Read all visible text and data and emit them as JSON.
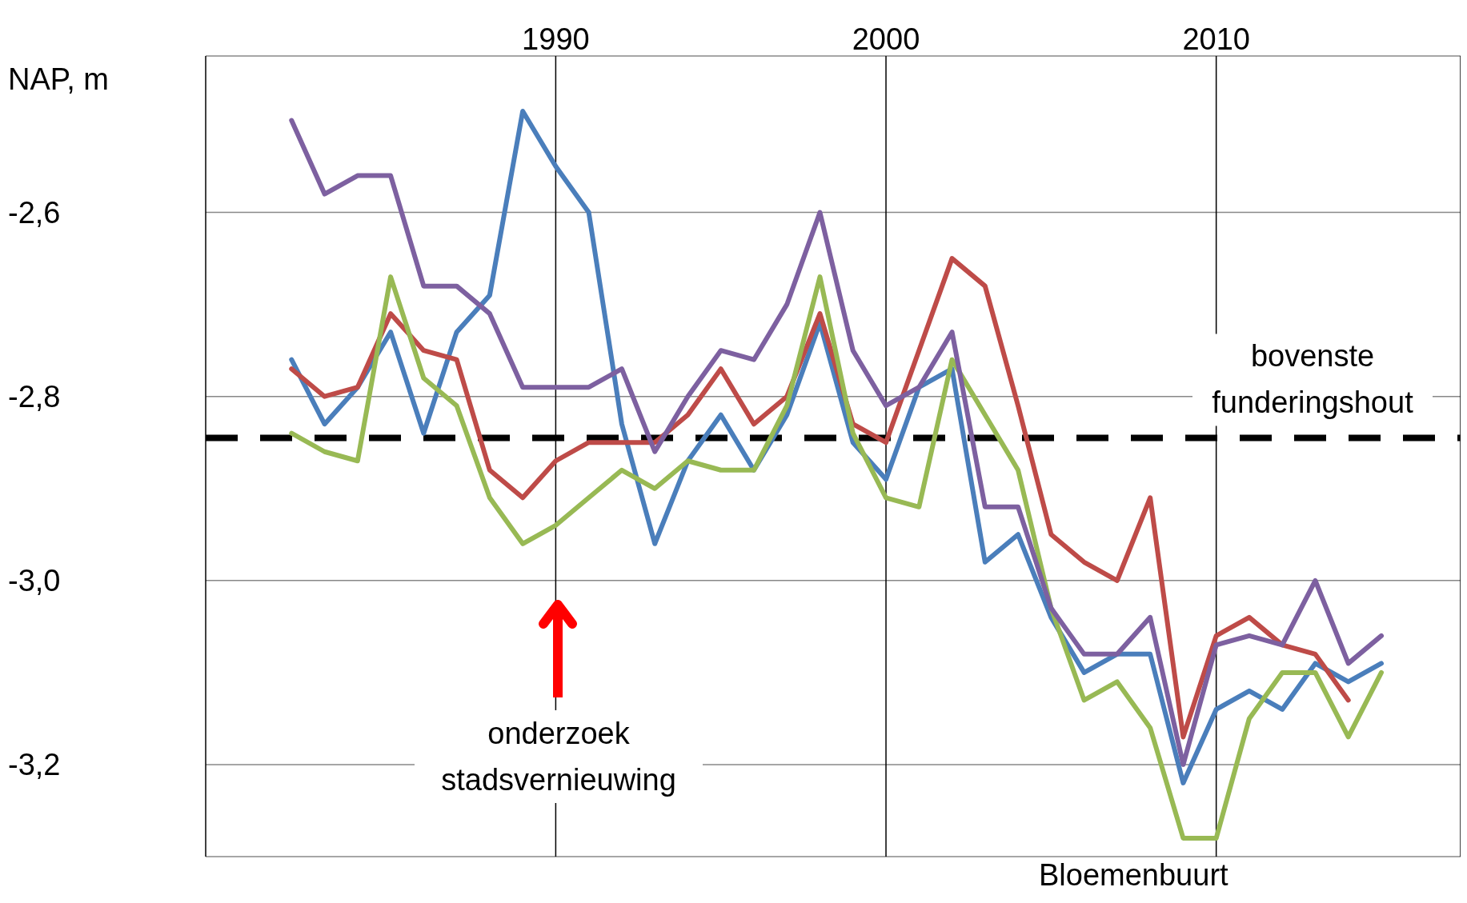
{
  "chart_data": {
    "type": "line",
    "ylabel": "NAP, m",
    "x": [
      1982,
      1983,
      1984,
      1985,
      1986,
      1987,
      1988,
      1989,
      1990,
      1991,
      1992,
      1993,
      1994,
      1995,
      1996,
      1997,
      1998,
      1999,
      2000,
      2001,
      2002,
      2003,
      2004,
      2005,
      2006,
      2007,
      2008,
      2009,
      2010,
      2011,
      2012,
      2013,
      2014,
      2015
    ],
    "series": [
      {
        "color": "#4a7ebb",
        "values": [
          -2.76,
          -2.83,
          -2.79,
          -2.73,
          -2.84,
          -2.73,
          -2.69,
          -2.49,
          -2.55,
          -2.6,
          -2.83,
          -2.96,
          -2.87,
          -2.82,
          -2.88,
          -2.82,
          -2.72,
          -2.85,
          -2.89,
          -2.79,
          -2.77,
          -2.98,
          -2.95,
          -3.04,
          -3.1,
          -3.08,
          -3.08,
          -3.22,
          -3.14,
          -3.12,
          -3.14,
          -3.09,
          -3.11,
          -3.09
        ]
      },
      {
        "color": "#be4b48",
        "values": [
          -2.77,
          -2.8,
          -2.79,
          -2.71,
          -2.75,
          -2.76,
          -2.88,
          -2.91,
          -2.87,
          -2.85,
          -2.85,
          -2.85,
          -2.82,
          -2.77,
          -2.83,
          -2.8,
          -2.71,
          -2.83,
          -2.85,
          -2.75,
          -2.65,
          -2.68,
          -2.81,
          -2.95,
          -2.98,
          -3.0,
          -2.91,
          -3.17,
          -3.06,
          -3.04,
          -3.07,
          -3.08,
          -3.13,
          null
        ]
      },
      {
        "color": "#98b954",
        "values": [
          -2.84,
          -2.86,
          -2.87,
          -2.67,
          -2.78,
          -2.81,
          -2.91,
          -2.96,
          -2.94,
          -2.91,
          -2.88,
          -2.9,
          -2.87,
          -2.88,
          -2.88,
          -2.81,
          -2.67,
          -2.84,
          -2.91,
          -2.92,
          -2.76,
          -2.82,
          -2.88,
          -3.03,
          -3.13,
          -3.11,
          -3.16,
          -3.28,
          -3.28,
          -3.15,
          -3.1,
          -3.1,
          -3.17,
          -3.1
        ]
      },
      {
        "color": "#7d60a0",
        "values": [
          -2.5,
          -2.58,
          -2.56,
          -2.56,
          -2.68,
          -2.68,
          -2.71,
          -2.79,
          -2.79,
          -2.79,
          -2.77,
          -2.86,
          -2.8,
          -2.75,
          -2.76,
          -2.7,
          -2.6,
          -2.75,
          -2.81,
          -2.79,
          -2.73,
          -2.92,
          -2.92,
          -3.03,
          -3.08,
          -3.08,
          -3.04,
          -3.2,
          -3.07,
          -3.06,
          -3.07,
          -3.0,
          -3.09,
          -3.06
        ]
      }
    ],
    "xlim": [
      1979.4,
      2017.4
    ],
    "xticks": [
      1990,
      2000,
      2010
    ],
    "ylim": [
      -3.3,
      -2.43
    ],
    "yticks": [
      {
        "value": -2.6,
        "label": "-2,6"
      },
      {
        "value": -2.8,
        "label": "-2,8"
      },
      {
        "value": -3.0,
        "label": "-3,0"
      },
      {
        "value": -3.2,
        "label": "-3,2"
      }
    ],
    "grid": true,
    "marker": "none",
    "line_style": "solid",
    "ref_lines": [
      {
        "axis": "y",
        "value": -2.845,
        "label": "bovenste funderingshout",
        "color": "#000000",
        "line_style": "dashed"
      }
    ],
    "annotations": [
      "onderzoek stadsvernieuwing",
      "Bloemenbuurt"
    ]
  }
}
